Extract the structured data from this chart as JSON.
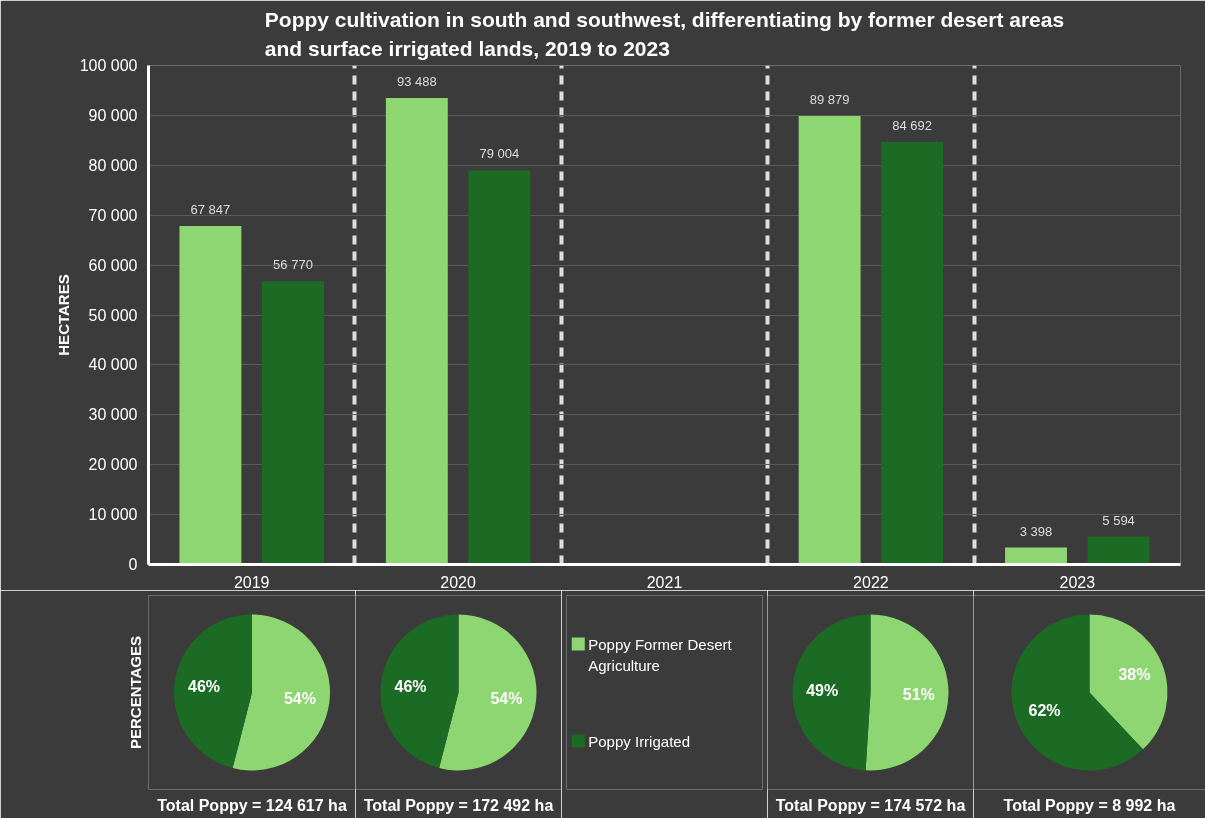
{
  "chart_data": [
    {
      "type": "bar",
      "title": "Poppy cultivation in south and southwest, differentiating by former desert areas and surface irrigated lands, 2019 to 2023",
      "ylabel": "HECTARES",
      "categories": [
        "2019",
        "2020",
        "2021",
        "2022",
        "2023"
      ],
      "series": [
        {
          "name": "Poppy Former Desert Agriculture",
          "color": "#8dd672",
          "values": [
            67847,
            93488,
            null,
            89879,
            3398
          ],
          "value_labels": [
            "67 847",
            "93 488",
            null,
            "89 879",
            "3 398"
          ]
        },
        {
          "name": "Poppy Irrigated",
          "color": "#1c6b25",
          "values": [
            56770,
            79004,
            null,
            84692,
            5594
          ],
          "value_labels": [
            "56 770",
            "79 004",
            null,
            "84 692",
            "5 594"
          ]
        }
      ],
      "ylim": [
        0,
        100000
      ],
      "yticks": [
        0,
        {
          "value": 10000,
          "label": "10 000"
        },
        {
          "value": 20000,
          "label": "20 000"
        },
        {
          "value": 30000,
          "label": "30 000"
        },
        {
          "value": 40000,
          "label": "40 000"
        },
        {
          "value": 50000,
          "label": "50 000"
        },
        {
          "value": 60000,
          "label": "60 000"
        },
        {
          "value": 70000,
          "label": "70 000"
        },
        {
          "value": 80000,
          "label": "80 000"
        },
        {
          "value": 90000,
          "label": "90 000"
        },
        {
          "value": 100000,
          "label": "100 000"
        }
      ],
      "grid": true,
      "legend": "bottom"
    },
    {
      "type": "pie",
      "ylabel": "PERCENTAGES",
      "categories": [
        null,
        null
      ],
      "values": [
        54,
        46
      ],
      "colors": [
        "#8dd672",
        "#1c6b25"
      ],
      "value_labels": [
        "54%",
        "46%"
      ],
      "annotations": [
        "Total Poppy = 124 617 ha"
      ]
    },
    {
      "type": "pie",
      "categories": [
        null,
        null
      ],
      "values": [
        54,
        46
      ],
      "colors": [
        "#8dd672",
        "#1c6b25"
      ],
      "value_labels": [
        "54%",
        "46%"
      ],
      "annotations": [
        "Total Poppy = 172 492 ha"
      ]
    },
    {
      "type": "pie",
      "categories": [
        null,
        null
      ],
      "values": [
        51,
        49
      ],
      "colors": [
        "#8dd672",
        "#1c6b25"
      ],
      "value_labels": [
        "51%",
        "49%"
      ],
      "annotations": [
        "Total Poppy = 174 572 ha"
      ]
    },
    {
      "type": "pie",
      "categories": [
        null,
        null
      ],
      "values": [
        38,
        62
      ],
      "colors": [
        "#8dd672",
        "#1c6b25"
      ],
      "value_labels": [
        "38%",
        "62%"
      ],
      "annotations": [
        "Total Poppy = 8 992 ha"
      ]
    }
  ]
}
